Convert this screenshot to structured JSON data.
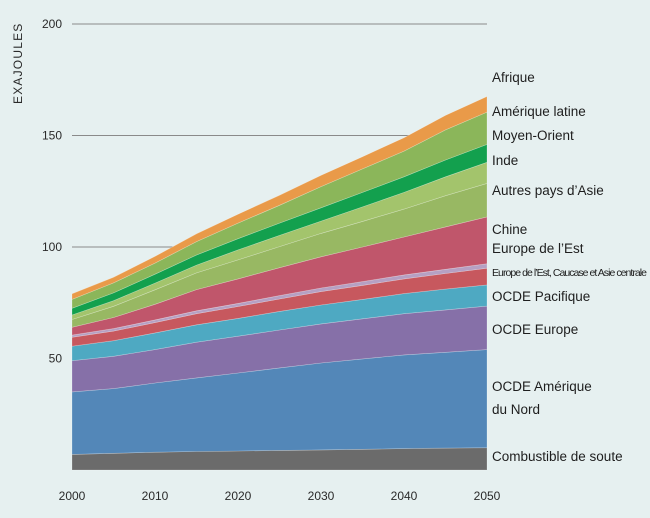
{
  "chart_data": {
    "type": "area",
    "stacked": true,
    "ylabel": "EXAJOULES",
    "xlabel": "",
    "ylim": [
      0,
      200
    ],
    "yticks": [
      50,
      100,
      150,
      200
    ],
    "xlim": [
      2000,
      2050
    ],
    "xticks": [
      2000,
      2010,
      2020,
      2030,
      2040,
      2050
    ],
    "grid": "horizontal",
    "x": [
      2000,
      2005,
      2010,
      2015,
      2020,
      2025,
      2030,
      2035,
      2040,
      2045,
      2050
    ],
    "series": [
      {
        "name": "Combustible de soute",
        "color": "#6b6b6b",
        "values": [
          7,
          7.5,
          8,
          8.3,
          8.5,
          8.8,
          9,
          9.3,
          9.6,
          9.8,
          10
        ]
      },
      {
        "name": "OCDE Amérique du Nord",
        "color": "#5387b8",
        "values": [
          28,
          29,
          31,
          33,
          35,
          37,
          39,
          40.5,
          42,
          43,
          44
        ]
      },
      {
        "name": "OCDE Europe",
        "color": "#8670a8",
        "values": [
          14,
          14.5,
          15,
          16,
          16.5,
          17,
          17.5,
          18,
          18.5,
          19,
          19.5
        ]
      },
      {
        "name": "OCDE Pacifique",
        "color": "#4ea9c2",
        "values": [
          6.5,
          7,
          7.5,
          7.8,
          8,
          8.3,
          8.5,
          8.7,
          9,
          9.3,
          9.5
        ]
      },
      {
        "name": "Europe de l'Est, Caucase et Asie centrale",
        "color": "#c7585e",
        "values": [
          4,
          4.3,
          4.6,
          5,
          5.3,
          5.6,
          6,
          6.3,
          6.6,
          7,
          7.5
        ]
      },
      {
        "name": "Europe de l'Est",
        "color": "#b6a0c3",
        "values": [
          1,
          1.1,
          1.2,
          1.3,
          1.4,
          1.5,
          1.6,
          1.7,
          1.8,
          1.9,
          2
        ]
      },
      {
        "name": "Chine",
        "color": "#c0566b",
        "values": [
          3.5,
          5,
          7,
          9.5,
          11,
          12.5,
          14,
          15.5,
          17,
          19,
          21
        ]
      },
      {
        "name": "Autres pays d'Asie",
        "color": "#98b863",
        "values": [
          3.5,
          5,
          6.5,
          7.5,
          8.5,
          9.5,
          10.5,
          11.5,
          12.5,
          14,
          15
        ]
      },
      {
        "name": "Inde",
        "color": "#a3c46c",
        "values": [
          2,
          2.5,
          3,
          3.5,
          4.5,
          5,
          5.5,
          6.5,
          7.5,
          8.5,
          9.5
        ]
      },
      {
        "name": "Moyen-Orient",
        "color": "#13a04e",
        "values": [
          3,
          3.5,
          4,
          4.5,
          5,
          5.5,
          6,
          6.5,
          7,
          7.5,
          8
        ]
      },
      {
        "name": "Amérique latine",
        "color": "#8bb65a",
        "values": [
          4,
          4.5,
          5,
          6,
          7,
          8,
          9.5,
          10.5,
          11.5,
          13.5,
          14.5
        ]
      },
      {
        "name": "Afrique",
        "color": "#e99a49",
        "values": [
          2.5,
          2.5,
          3,
          3.5,
          4,
          4.5,
          5,
          5.5,
          6,
          6.5,
          7
        ]
      }
    ],
    "labels": [
      {
        "text": "Afrique"
      },
      {
        "text": "Amérique latine"
      },
      {
        "text": "Moyen-Orient"
      },
      {
        "text": "Inde"
      },
      {
        "text": "Autres pays d’Asie"
      },
      {
        "text": "Chine"
      },
      {
        "text": "Europe de l’Est"
      },
      {
        "text": "Europe de l’Est, Caucase et Asie centrale"
      },
      {
        "text": "OCDE Pacifique"
      },
      {
        "text": "OCDE Europe"
      },
      {
        "text": "OCDE Amérique"
      },
      {
        "text": "du Nord"
      },
      {
        "text": "Combustible de soute"
      }
    ]
  }
}
